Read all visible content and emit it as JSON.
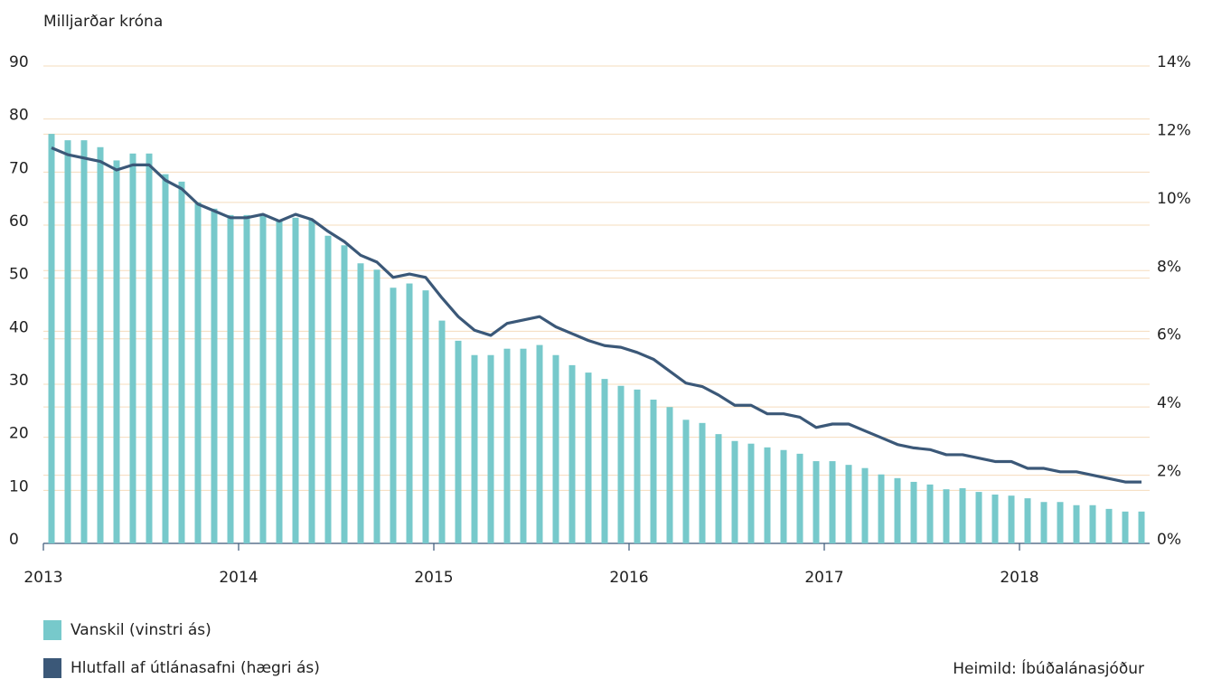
{
  "chart_data": {
    "type": "combo",
    "y_label": "Milljarðar króna",
    "source": "Heimild: Íbúðalánasjóður",
    "categories": [
      "2013",
      null,
      null,
      null,
      null,
      null,
      null,
      null,
      null,
      null,
      null,
      null,
      "2014",
      null,
      null,
      null,
      null,
      null,
      null,
      null,
      null,
      null,
      null,
      null,
      "2015",
      null,
      null,
      null,
      null,
      null,
      null,
      null,
      null,
      null,
      null,
      null,
      "2016",
      null,
      null,
      null,
      null,
      null,
      null,
      null,
      null,
      null,
      null,
      null,
      "2017",
      null,
      null,
      null,
      null,
      null,
      null,
      null,
      null,
      null,
      null,
      null,
      "2018",
      null,
      null,
      null,
      null,
      null,
      null,
      null
    ],
    "series": [
      {
        "name": "Vanskil (vinstri ás)",
        "type": "bar",
        "color": "#77c9cb",
        "values": [
          77.2,
          76,
          76,
          74.7,
          72.2,
          73.5,
          73.5,
          69.6,
          68.2,
          64.3,
          63.1,
          61.9,
          61.9,
          62,
          61,
          61.4,
          61,
          58,
          56.2,
          52.8,
          51.6,
          48.2,
          49,
          47.7,
          42,
          38.2,
          35.5,
          35.5,
          36.7,
          36.7,
          37.4,
          35.5,
          33.6,
          32.2,
          31,
          29.7,
          29,
          27.1,
          25.7,
          23.3,
          22.7,
          20.6,
          19.3,
          18.8,
          18.1,
          17.6,
          16.9,
          15.5,
          15.5,
          14.8,
          14.2,
          13,
          12.3,
          11.6,
          11.1,
          10.2,
          10.4,
          9.7,
          9.2,
          9,
          8.5,
          7.8,
          7.8,
          7.2,
          7.2,
          6.5,
          6,
          6
        ]
      },
      {
        "name": "Hlutfall af útlánasafni (hægri ás)",
        "type": "line",
        "axis": "y2",
        "color": "#3b5878",
        "values": [
          11.6,
          11.4,
          11.3,
          11.2,
          10.95,
          11.1,
          11.1,
          10.65,
          10.4,
          9.95,
          9.75,
          9.55,
          9.55,
          9.65,
          9.45,
          9.65,
          9.5,
          9.15,
          8.85,
          8.45,
          8.25,
          7.8,
          7.9,
          7.8,
          7.2,
          6.65,
          6.25,
          6.1,
          6.45,
          6.55,
          6.65,
          6.35,
          6.15,
          5.95,
          5.8,
          5.75,
          5.6,
          5.4,
          5.05,
          4.7,
          4.6,
          4.35,
          4.05,
          4.05,
          3.8,
          3.8,
          3.7,
          3.4,
          3.5,
          3.5,
          3.3,
          3.1,
          2.9,
          2.8,
          2.75,
          2.6,
          2.6,
          2.5,
          2.4,
          2.4,
          2.2,
          2.2,
          2.1,
          2.1,
          2.0,
          1.9,
          1.8,
          1.8
        ]
      }
    ],
    "ylim": [
      0,
      90
    ],
    "yticks": [
      0,
      10,
      20,
      30,
      40,
      50,
      60,
      70,
      80,
      90
    ],
    "y2lim": [
      0,
      14
    ],
    "y2ticks": [
      {
        "value": 0,
        "label": "0%"
      },
      {
        "value": 2,
        "label": "2%"
      },
      {
        "value": 4,
        "label": "4%"
      },
      {
        "value": 6,
        "label": "6%"
      },
      {
        "value": 8,
        "label": "8%"
      },
      {
        "value": 10,
        "label": "10%"
      },
      {
        "value": 12,
        "label": "12%"
      },
      {
        "value": 14,
        "label": "14%"
      }
    ],
    "grid": true,
    "grid_color": "#f5dcbd",
    "legend": "bottom-left"
  }
}
